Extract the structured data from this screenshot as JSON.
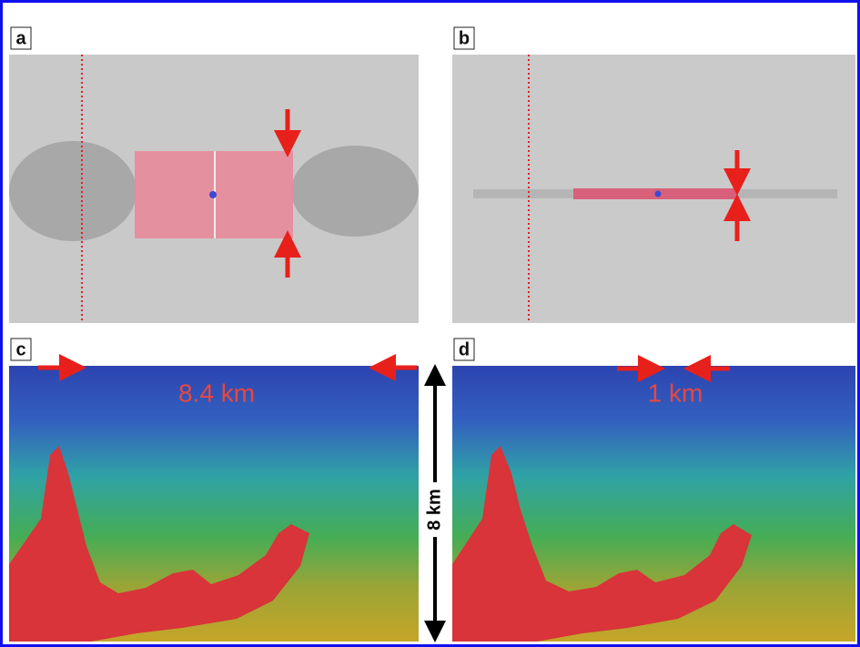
{
  "panels": [
    {
      "label": "a"
    },
    {
      "label": "b"
    },
    {
      "label": "c",
      "annotation": "8.4 km"
    },
    {
      "label": "d",
      "annotation": "1 km"
    }
  ],
  "scale_label": "8 km"
}
